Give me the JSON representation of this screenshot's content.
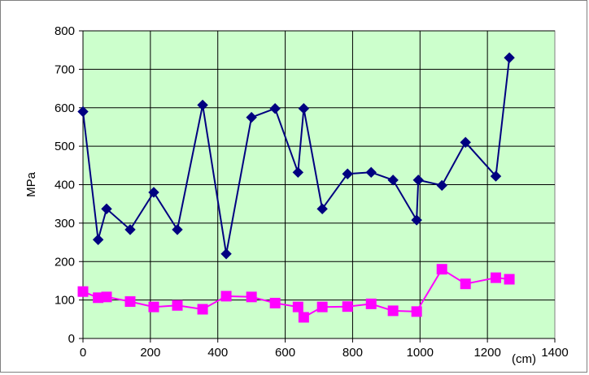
{
  "chart_data": {
    "type": "line",
    "title": "",
    "xlabel": "(cm)",
    "ylabel": "MPa",
    "xlim": [
      0,
      1400
    ],
    "ylim": [
      0,
      800
    ],
    "x_ticks": [
      "0",
      "200",
      "400",
      "600",
      "800",
      "1000",
      "1200",
      "1400"
    ],
    "y_ticks": [
      "0",
      "100",
      "200",
      "300",
      "400",
      "500",
      "600",
      "700",
      "800"
    ],
    "grid": true,
    "legend": "none",
    "plot_background": "#ccffcc",
    "series": [
      {
        "color": "#000080",
        "marker": "diamond",
        "points": [
          [
            0,
            590
          ],
          [
            45,
            257
          ],
          [
            70,
            337
          ],
          [
            140,
            283
          ],
          [
            210,
            380
          ],
          [
            280,
            283
          ],
          [
            355,
            607
          ],
          [
            425,
            220
          ],
          [
            500,
            575
          ],
          [
            570,
            598
          ],
          [
            638,
            432
          ],
          [
            655,
            598
          ],
          [
            710,
            337
          ],
          [
            785,
            428
          ],
          [
            855,
            432
          ],
          [
            920,
            412
          ],
          [
            990,
            308
          ],
          [
            995,
            412
          ],
          [
            1065,
            398
          ],
          [
            1135,
            510
          ],
          [
            1225,
            422
          ],
          [
            1265,
            730
          ]
        ]
      },
      {
        "color": "#ff00ff",
        "marker": "square",
        "points": [
          [
            0,
            122
          ],
          [
            45,
            106
          ],
          [
            70,
            108
          ],
          [
            140,
            96
          ],
          [
            210,
            82
          ],
          [
            280,
            86
          ],
          [
            355,
            76
          ],
          [
            425,
            110
          ],
          [
            500,
            108
          ],
          [
            570,
            92
          ],
          [
            638,
            82
          ],
          [
            655,
            55
          ],
          [
            710,
            82
          ],
          [
            785,
            83
          ],
          [
            855,
            90
          ],
          [
            920,
            72
          ],
          [
            990,
            70
          ],
          [
            1065,
            180
          ],
          [
            1135,
            142
          ],
          [
            1225,
            158
          ],
          [
            1265,
            154
          ]
        ]
      }
    ]
  }
}
